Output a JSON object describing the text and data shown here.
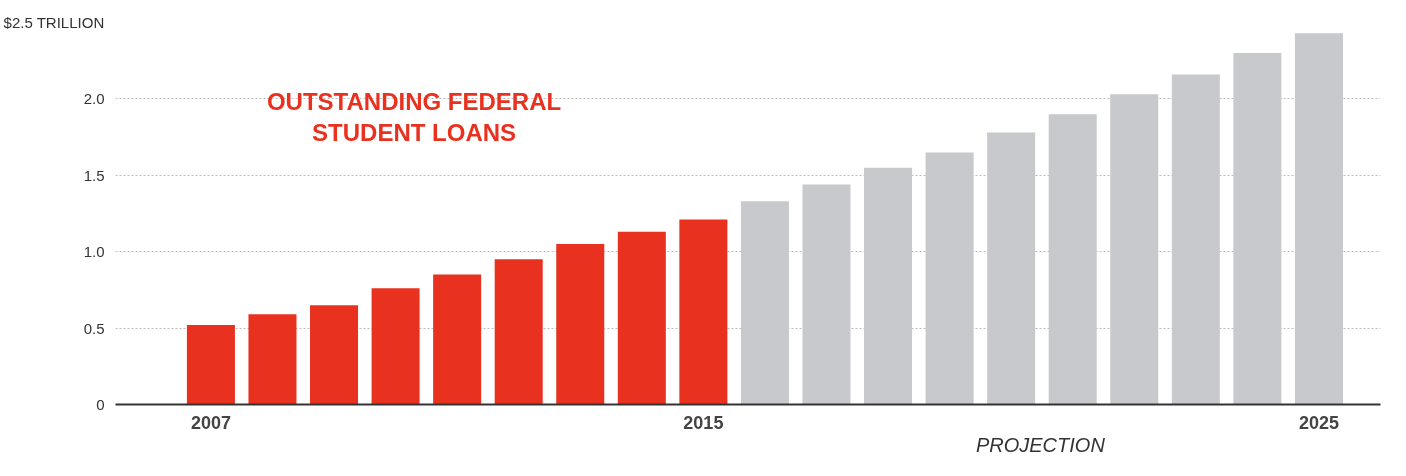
{
  "chart_data": {
    "type": "bar",
    "title": "OUTSTANDING FEDERAL STUDENT LOANS",
    "categories": [
      "2007",
      null,
      null,
      null,
      null,
      null,
      null,
      null,
      "2015",
      null,
      null,
      null,
      null,
      null,
      null,
      null,
      null,
      null,
      "2025"
    ],
    "values": [
      0.52,
      0.59,
      0.65,
      0.76,
      0.85,
      0.95,
      1.05,
      1.13,
      1.21,
      1.33,
      1.44,
      1.55,
      1.65,
      1.78,
      1.9,
      2.03,
      2.16,
      2.3,
      2.43
    ],
    "colors": [
      "#e8311f",
      "#e8311f",
      "#e8311f",
      "#e8311f",
      "#e8311f",
      "#e8311f",
      "#e8311f",
      "#e8311f",
      "#e8311f",
      "#c8c9cc",
      "#c8c9cc",
      "#c8c9cc",
      "#c8c9cc",
      "#c8c9cc",
      "#c8c9cc",
      "#c8c9cc",
      "#c8c9cc",
      "#c8c9cc",
      "#c8c9cc"
    ],
    "ylim": [
      0,
      2.5
    ],
    "yticks": [
      0,
      0.5,
      {
        "value": 1,
        "label": "1.0"
      },
      1.5,
      {
        "value": 2,
        "label": "2.0"
      },
      {
        "value": 2.5,
        "label": "$2.5 TRILLION"
      }
    ],
    "grid": "y",
    "annotations": [
      "PROJECTION"
    ]
  }
}
